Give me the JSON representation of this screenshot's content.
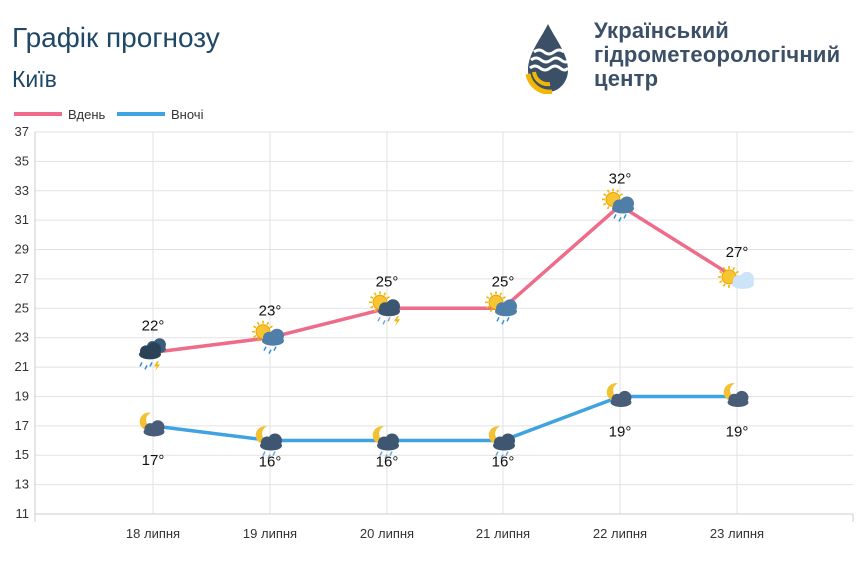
{
  "header": {
    "title": "Графік прогнозу",
    "city": "Київ",
    "org": "Український\nгідрометеорологічний\nцентр"
  },
  "chart_data": {
    "type": "line",
    "categories": [
      "18 липня",
      "19 липня",
      "20 липня",
      "21 липня",
      "22 липня",
      "23 липня"
    ],
    "series": [
      {
        "name": "Вдень",
        "values": [
          22,
          23,
          25,
          25,
          32,
          27
        ],
        "labels": [
          "22°",
          "23°",
          "25°",
          "25°",
          "32°",
          "27°"
        ],
        "icons": [
          "thunderstorm-icon",
          "sun-cloud-rain-icon",
          "sun-thunderstorm-icon",
          "sun-cloud-rain-icon",
          "sun-cloud-rain-icon",
          "sun-cloud-icon"
        ],
        "color": "#ee6b8a"
      },
      {
        "name": "Вночі",
        "values": [
          17,
          16,
          16,
          16,
          19,
          19
        ],
        "labels": [
          "17°",
          "16°",
          "16°",
          "16°",
          "19°",
          "19°"
        ],
        "icons": [
          "moon-cloud-icon",
          "moon-cloud-rain-icon",
          "moon-cloud-rain-icon",
          "moon-cloud-rain-icon",
          "moon-cloud-icon",
          "moon-cloud-icon"
        ],
        "color": "#3ea3e0"
      }
    ],
    "yticks": [
      11,
      13,
      15,
      17,
      19,
      21,
      23,
      25,
      27,
      29,
      31,
      33,
      35,
      37
    ],
    "ylim": [
      11,
      37
    ],
    "grid": true,
    "legend": "top-left"
  }
}
